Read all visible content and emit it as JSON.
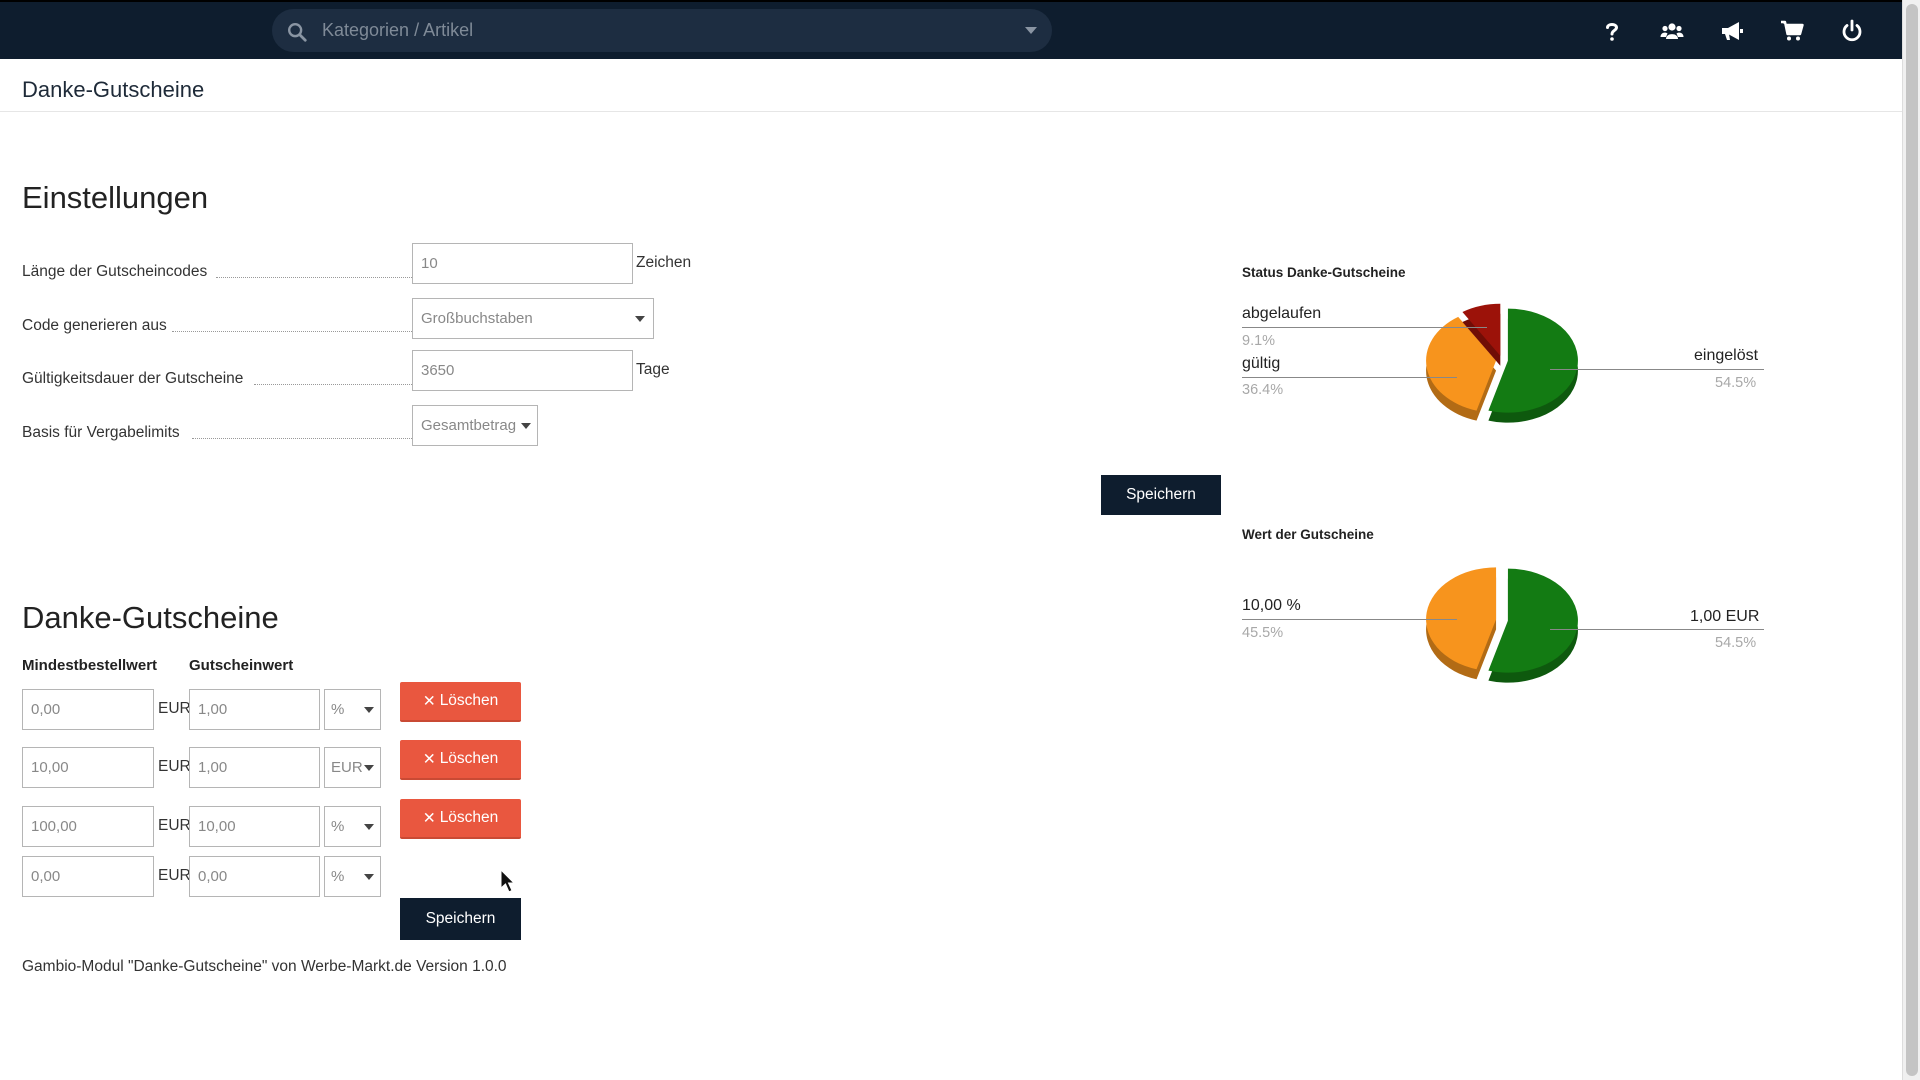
{
  "topbar": {
    "search_placeholder": "Kategorien / Artikel",
    "icons": [
      "help-icon",
      "users-icon",
      "megaphone-icon",
      "cart-icon",
      "power-icon"
    ]
  },
  "page": {
    "title": "Danke-Gutscheine"
  },
  "settings": {
    "heading": "Einstellungen",
    "code_length_label": "Länge der Gutscheincodes",
    "code_length_value": "10",
    "code_length_unit": "Zeichen",
    "generate_label": "Code generieren aus",
    "generate_value": "Großbuchstaben",
    "validity_label": "Gültigkeitsdauer der Gutscheine",
    "validity_value": "3650",
    "validity_unit": "Tage",
    "basis_label": "Basis für Vergabelimits",
    "basis_value": "Gesamtbetrag",
    "save_label": "Speichern"
  },
  "vouchers": {
    "heading": "Danke-Gutscheine",
    "col_min": "Mindestbestellwert",
    "col_value": "Gutscheinwert",
    "currency": "EUR",
    "delete_label": "Löschen",
    "rows": [
      {
        "min": "0,00",
        "value": "1,00",
        "type": "%"
      },
      {
        "min": "10,00",
        "value": "1,00",
        "type": "EUR"
      },
      {
        "min": "100,00",
        "value": "10,00",
        "type": "%"
      },
      {
        "min": "0,00",
        "value": "0,00",
        "type": "%"
      }
    ],
    "save_label": "Speichern"
  },
  "footer": {
    "note": "Gambio-Modul \"Danke-Gutscheine\" von Werbe-Markt.de Version 1.0.0"
  },
  "colors": {
    "green": "#137b13",
    "orange": "#f7941d",
    "red": "#9c1209",
    "dark": "#0e1d2e",
    "delete": "#e9573f"
  },
  "chart_data": [
    {
      "type": "pie",
      "title": "Status Danke-Gutscheine",
      "slices": [
        {
          "label": "eingelöst",
          "value": 54.5,
          "pct": "54.5%",
          "color": "#137b13"
        },
        {
          "label": "gültig",
          "value": 36.4,
          "pct": "36.4%",
          "color": "#f7941d"
        },
        {
          "label": "abgelaufen",
          "value": 9.1,
          "pct": "9.1%",
          "color": "#9c1209"
        }
      ]
    },
    {
      "type": "pie",
      "title": "Wert der Gutscheine",
      "slices": [
        {
          "label": "1,00 EUR",
          "value": 54.5,
          "pct": "54.5%",
          "color": "#137b13"
        },
        {
          "label": "10,00 %",
          "value": 45.5,
          "pct": "45.5%",
          "color": "#f7941d"
        }
      ]
    }
  ]
}
